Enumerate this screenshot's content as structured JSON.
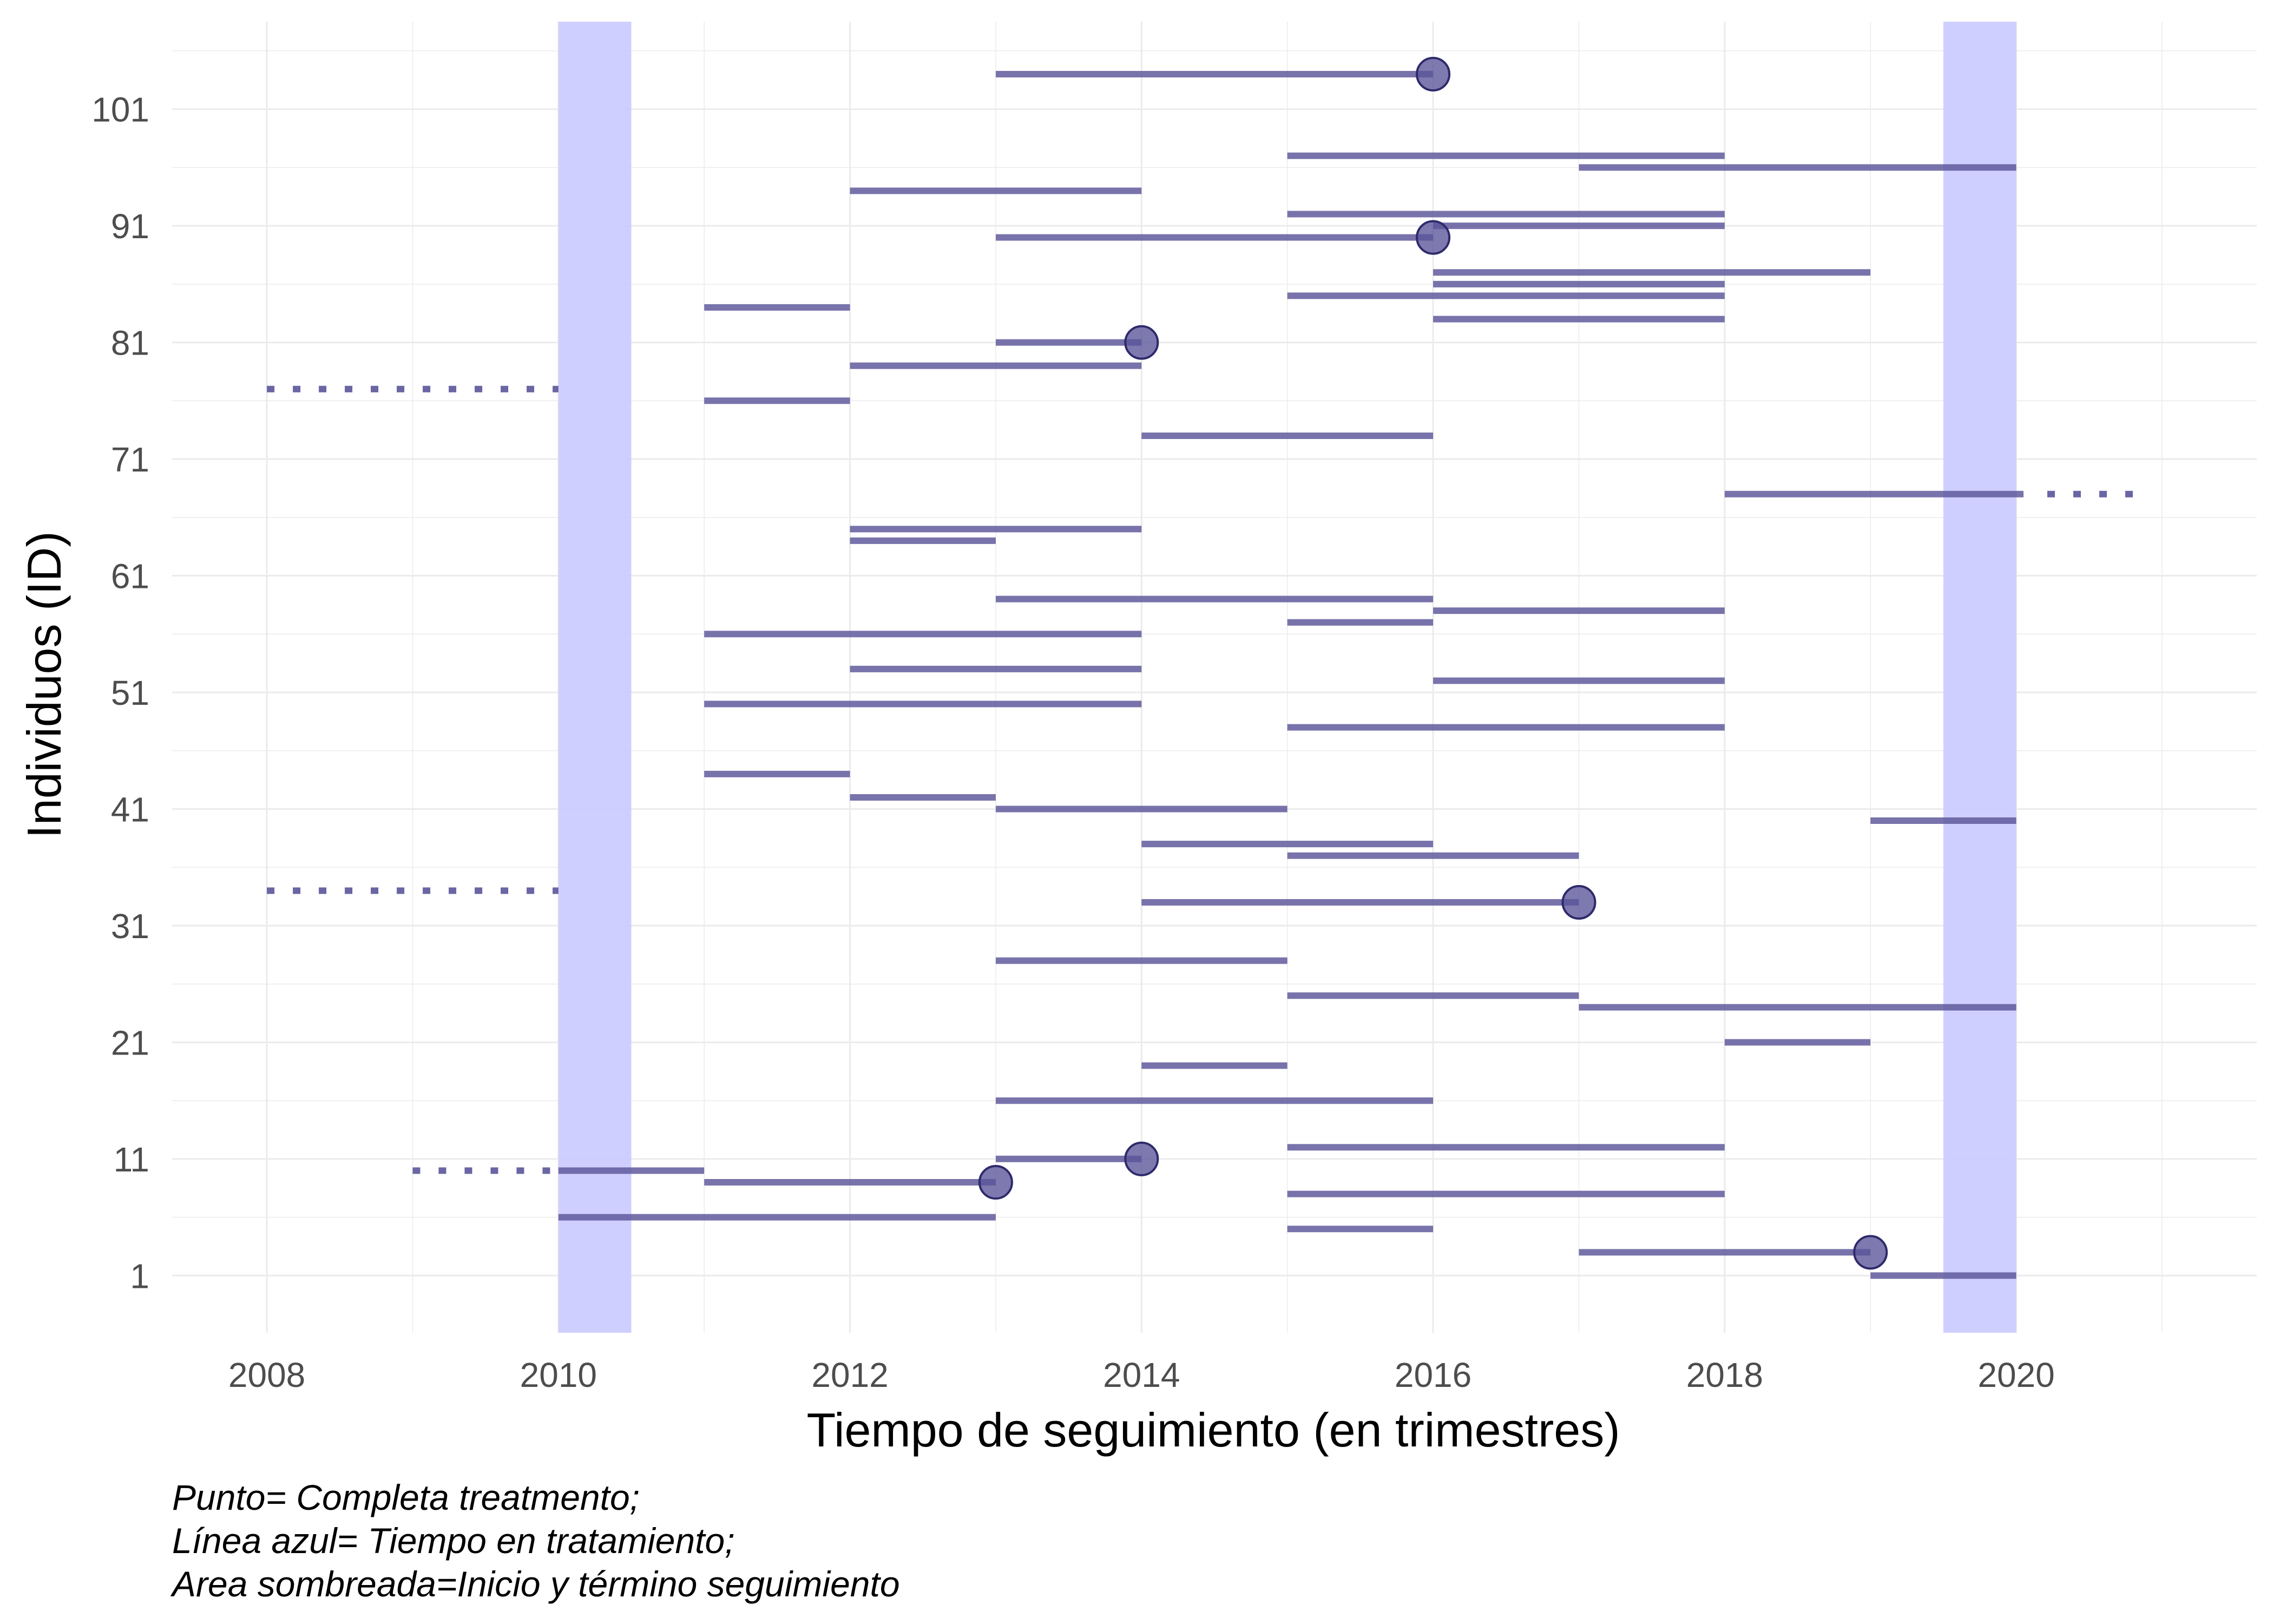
{
  "chart_data": {
    "type": "timeline",
    "xlabel": "Tiempo de seguimiento (en trimestres)",
    "ylabel": "Individuos (ID)",
    "xlim": [
      2007.35,
      2021.65
    ],
    "ylim": [
      -3.9,
      108.5
    ],
    "x_ticks": [
      2008,
      2010,
      2012,
      2014,
      2016,
      2018,
      2020
    ],
    "y_ticks": [
      1,
      11,
      21,
      31,
      41,
      51,
      61,
      71,
      81,
      91,
      101
    ],
    "grid": true,
    "shaded_periods": [
      {
        "start": 2010,
        "end": 2010.5
      },
      {
        "start": 2019.5,
        "end": 2020
      }
    ],
    "segments": [
      {
        "id": 1,
        "start": 2019,
        "end": 2020
      },
      {
        "id": 3,
        "start": 2017,
        "end": 2019,
        "completed": true
      },
      {
        "id": 5,
        "start": 2015,
        "end": 2016
      },
      {
        "id": 6,
        "start": 2010,
        "end": 2013
      },
      {
        "id": 8,
        "start": 2015,
        "end": 2018
      },
      {
        "id": 9,
        "start": 2011,
        "end": 2013,
        "completed": true
      },
      {
        "id": 10,
        "start": 2010,
        "end": 2011,
        "censored_start": 2009
      },
      {
        "id": 11,
        "start": 2013,
        "end": 2014,
        "completed": true
      },
      {
        "id": 12,
        "start": 2015,
        "end": 2018
      },
      {
        "id": 16,
        "start": 2013,
        "end": 2016
      },
      {
        "id": 19,
        "start": 2014,
        "end": 2015
      },
      {
        "id": 21,
        "start": 2018,
        "end": 2019
      },
      {
        "id": 24,
        "start": 2017,
        "end": 2020
      },
      {
        "id": 25,
        "start": 2015,
        "end": 2017
      },
      {
        "id": 28,
        "start": 2013,
        "end": 2015
      },
      {
        "id": 33,
        "start": 2014,
        "end": 2017,
        "completed": true
      },
      {
        "id": 34,
        "censored_start": 2008,
        "censored_end": 2010
      },
      {
        "id": 37,
        "start": 2015,
        "end": 2017
      },
      {
        "id": 38,
        "start": 2014,
        "end": 2016
      },
      {
        "id": 40,
        "start": 2019,
        "end": 2020
      },
      {
        "id": 41,
        "start": 2013,
        "end": 2015
      },
      {
        "id": 42,
        "start": 2012,
        "end": 2013
      },
      {
        "id": 44,
        "start": 2011,
        "end": 2012
      },
      {
        "id": 48,
        "start": 2015,
        "end": 2018
      },
      {
        "id": 50,
        "start": 2011,
        "end": 2014
      },
      {
        "id": 52,
        "start": 2016,
        "end": 2018
      },
      {
        "id": 53,
        "start": 2012,
        "end": 2014
      },
      {
        "id": 56,
        "start": 2011,
        "end": 2014
      },
      {
        "id": 57,
        "start": 2015,
        "end": 2016
      },
      {
        "id": 58,
        "start": 2016,
        "end": 2018
      },
      {
        "id": 59,
        "start": 2013,
        "end": 2016
      },
      {
        "id": 64,
        "start": 2012,
        "end": 2013
      },
      {
        "id": 65,
        "start": 2012,
        "end": 2014
      },
      {
        "id": 68,
        "start": 2018,
        "end": 2020.05,
        "censored_end": 2020.9
      },
      {
        "id": 73,
        "start": 2014,
        "end": 2016
      },
      {
        "id": 76,
        "start": 2011,
        "end": 2012
      },
      {
        "id": 77,
        "censored_start": 2008,
        "censored_end": 2010
      },
      {
        "id": 79,
        "start": 2012,
        "end": 2014
      },
      {
        "id": 81,
        "start": 2013,
        "end": 2014,
        "completed": true
      },
      {
        "id": 83,
        "start": 2016,
        "end": 2018
      },
      {
        "id": 84,
        "start": 2011,
        "end": 2012
      },
      {
        "id": 85,
        "start": 2015,
        "end": 2018
      },
      {
        "id": 86,
        "start": 2016,
        "end": 2018
      },
      {
        "id": 87,
        "start": 2016,
        "end": 2019
      },
      {
        "id": 90,
        "start": 2013,
        "end": 2016,
        "completed": true
      },
      {
        "id": 91,
        "start": 2016,
        "end": 2018
      },
      {
        "id": 92,
        "start": 2015,
        "end": 2018
      },
      {
        "id": 94,
        "start": 2012,
        "end": 2014
      },
      {
        "id": 96,
        "start": 2017,
        "end": 2020
      },
      {
        "id": 97,
        "start": 2015,
        "end": 2018
      },
      {
        "id": 104,
        "start": 2013,
        "end": 2016,
        "completed": true
      }
    ],
    "colors": {
      "segment": "#5a5499",
      "point_fill": "#5a5499",
      "point_edge": "#2e2a6b",
      "shade": "#ccccff",
      "grid": "#ebebeb",
      "tick_text": "#4d4d4d"
    }
  },
  "caption": {
    "line1": "Punto= Completa treatmento;",
    "line2": "Línea azul= Tiempo en tratamiento;",
    "line3": "Area sombreada=Inicio y término seguimiento"
  }
}
